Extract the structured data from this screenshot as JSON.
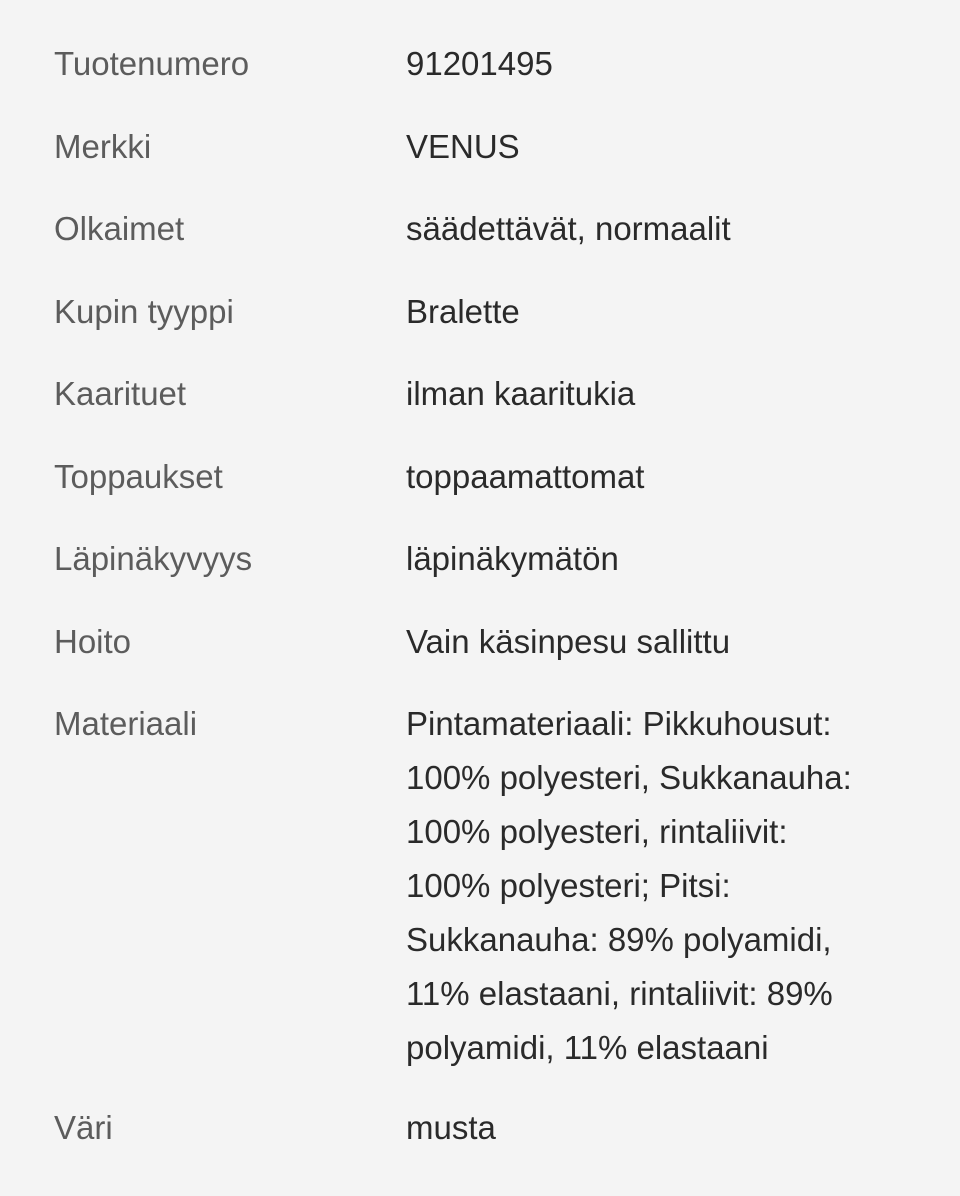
{
  "colors": {
    "background": "#f4f4f4",
    "label": "#5c5c5c",
    "value": "#2a2a2a"
  },
  "rows": [
    {
      "label": "Tuotenumero",
      "value": "91201495"
    },
    {
      "label": "Merkki",
      "value": "VENUS"
    },
    {
      "label": "Olkaimet",
      "value": "säädettävät, normaalit"
    },
    {
      "label": "Kupin tyyppi",
      "value": "Bralette"
    },
    {
      "label": "Kaarituet",
      "value": "ilman kaaritukia"
    },
    {
      "label": "Toppaukset",
      "value": "toppaamattomat"
    },
    {
      "label": "Läpinäkyvyys",
      "value": "läpinäkymätön"
    },
    {
      "label": "Hoito",
      "value": "Vain käsinpesu sallittu"
    }
  ],
  "material": {
    "label": "Materiaali",
    "lines": [
      "Pintamateriaali: Pikkuhousut:",
      "100% polyesteri, Sukkanauha:",
      "100% polyesteri, rintaliivit:",
      "100% polyesteri; Pitsi:",
      "Sukkanauha: 89% polyamidi,",
      "11% elastaani, rintaliivit: 89%",
      "polyamidi, 11% elastaani"
    ]
  },
  "color_row": {
    "label": "Väri",
    "value": "musta"
  }
}
